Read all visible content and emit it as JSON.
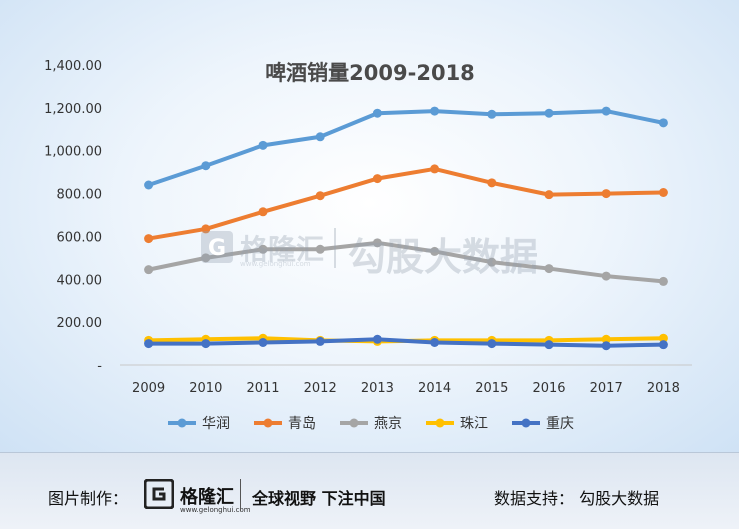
{
  "chart_data": {
    "type": "line",
    "title": "啤酒销量2009-2018",
    "x": [
      "2009",
      "2010",
      "2011",
      "2012",
      "2013",
      "2014",
      "2015",
      "2016",
      "2017",
      "2018"
    ],
    "yticks": [
      "-",
      "200.00",
      "400.00",
      "600.00",
      "800.00",
      "1,000.00",
      "1,200.00",
      "1,400.00"
    ],
    "ylim": [
      0,
      1400
    ],
    "legend_position": "bottom",
    "grid": false,
    "series": [
      {
        "name": "华润",
        "color": "#5B9BD5",
        "values": [
          840,
          930,
          1025,
          1065,
          1175,
          1185,
          1170,
          1175,
          1185,
          1130
        ]
      },
      {
        "name": "青岛",
        "color": "#ED7D31",
        "values": [
          590,
          635,
          715,
          790,
          870,
          915,
          850,
          795,
          800,
          805
        ]
      },
      {
        "name": "燕京",
        "color": "#A5A5A5",
        "values": [
          445,
          500,
          540,
          540,
          570,
          530,
          480,
          450,
          415,
          390
        ]
      },
      {
        "name": "珠江",
        "color": "#FFC000",
        "values": [
          115,
          120,
          125,
          115,
          110,
          115,
          115,
          115,
          120,
          125
        ]
      },
      {
        "name": "重庆",
        "color": "#4472C4",
        "values": [
          100,
          100,
          105,
          110,
          120,
          105,
          100,
          95,
          90,
          95
        ]
      }
    ]
  },
  "watermark": {
    "logo_name": "格隆汇",
    "logo_domain": "www.gelonghui.com",
    "text": "勾股大数据"
  },
  "footer": {
    "credit_label": "图片制作：",
    "logo_name": "格隆汇",
    "logo_sub": "www.gelonghui.com",
    "slogan": "全球视野 下注中国",
    "source": "数据支持：  勾股大数据"
  }
}
